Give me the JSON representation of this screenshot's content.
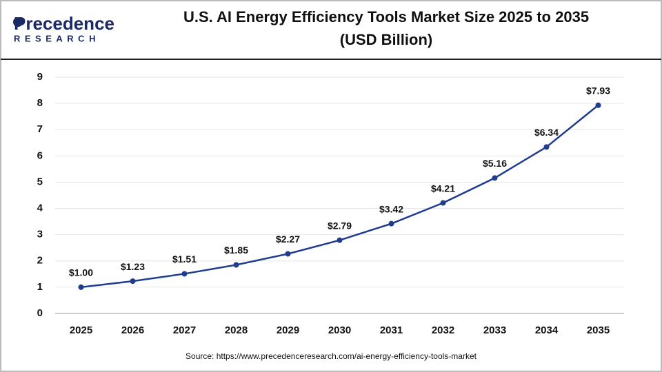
{
  "logo": {
    "name": "Precedence",
    "tagline": "RESEARCH"
  },
  "chart_data": {
    "type": "line",
    "title": "U.S. AI Energy Efficiency Tools Market Size 2025 to 2035",
    "subtitle": "(USD Billion)",
    "categories": [
      "2025",
      "2026",
      "2027",
      "2028",
      "2029",
      "2030",
      "2031",
      "2032",
      "2033",
      "2034",
      "2035"
    ],
    "values": [
      1.0,
      1.23,
      1.51,
      1.85,
      2.27,
      2.79,
      3.42,
      4.21,
      5.16,
      6.34,
      7.93
    ],
    "value_labels": [
      "$1.00",
      "$1.23",
      "$1.51",
      "$1.85",
      "$2.27",
      "$2.79",
      "$3.42",
      "$4.21",
      "$5.16",
      "$6.34",
      "$7.93"
    ],
    "color": "#1f3c8f",
    "ylim": [
      0,
      9
    ],
    "yticks": [
      0,
      1,
      2,
      3,
      4,
      5,
      6,
      7,
      8,
      9
    ],
    "grid": true,
    "source": "Source: https://www.precedenceresearch.com/ai-energy-efficiency-tools-market"
  }
}
